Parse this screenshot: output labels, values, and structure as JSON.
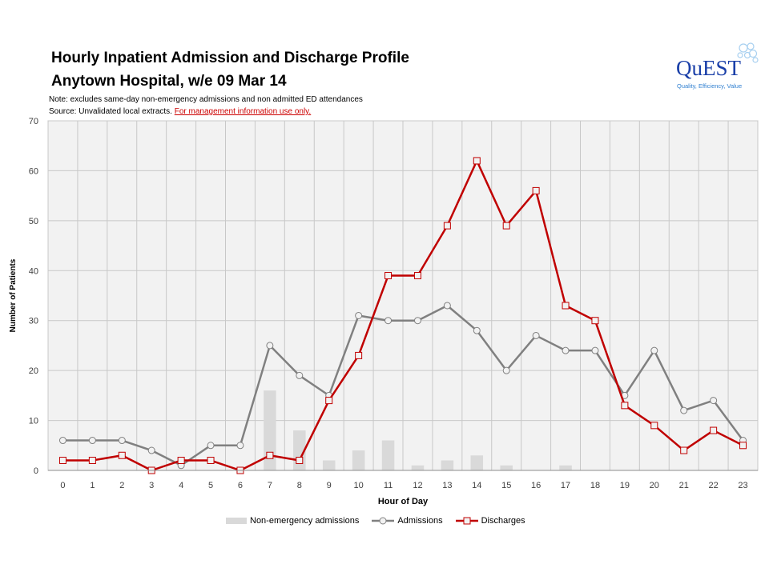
{
  "header": {
    "title_line1": "Hourly Inpatient Admission and Discharge Profile",
    "title_line2": "Anytown Hospital, w/e 09 Mar 14",
    "note1": "Note: excludes same-day non-emergency admissions and non admitted ED attendances",
    "note2_prefix": "Source: Unvalidated local extracts. ",
    "note2_link": "For management information use only."
  },
  "logo": {
    "name": "QuEST",
    "tagline": "Quality, Efficiency, Value"
  },
  "colors": {
    "admissions": "#808080",
    "discharges": "#c00000",
    "non_emergency": "#d9d9d9",
    "plot_bg": "#f2f2f2",
    "grid": "#c8c8c8"
  },
  "chart_data": {
    "type": "line",
    "title": "Hourly Inpatient Admission and Discharge Profile",
    "xlabel": "Hour of Day",
    "ylabel": "Number of Patients",
    "ylim": [
      0,
      70
    ],
    "yticks": [
      0,
      10,
      20,
      30,
      40,
      50,
      60,
      70
    ],
    "categories": [
      "0",
      "1",
      "2",
      "3",
      "4",
      "5",
      "6",
      "7",
      "8",
      "9",
      "10",
      "11",
      "12",
      "13",
      "14",
      "15",
      "16",
      "17",
      "18",
      "19",
      "20",
      "21",
      "22",
      "23"
    ],
    "series": [
      {
        "name": "Non-emergency admissions",
        "kind": "bar",
        "values": [
          0,
          0,
          0,
          0,
          0,
          0,
          0,
          16,
          8,
          2,
          4,
          6,
          1,
          2,
          3,
          1,
          0,
          1,
          0,
          0,
          0,
          0,
          0,
          0
        ]
      },
      {
        "name": "Admissions",
        "kind": "line",
        "marker": "circle",
        "values": [
          6,
          6,
          6,
          4,
          1,
          5,
          5,
          25,
          19,
          15,
          31,
          30,
          30,
          33,
          28,
          20,
          27,
          24,
          24,
          15,
          24,
          12,
          14,
          6
        ]
      },
      {
        "name": "Discharges",
        "kind": "line",
        "marker": "square",
        "values": [
          2,
          2,
          3,
          0,
          2,
          2,
          0,
          3,
          2,
          14,
          23,
          39,
          39,
          49,
          62,
          49,
          56,
          33,
          30,
          13,
          9,
          4,
          8,
          5
        ]
      }
    ],
    "legend_position": "bottom"
  }
}
